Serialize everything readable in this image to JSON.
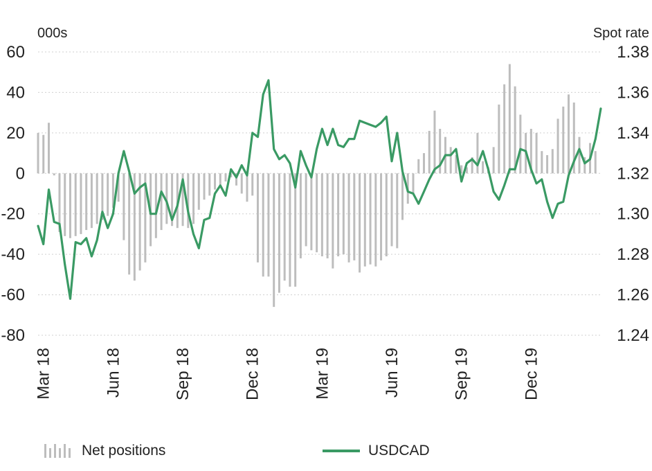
{
  "chart_data": {
    "type": "bar+line",
    "left_axis": {
      "unit_label": "000s",
      "ticks": [
        60,
        40,
        20,
        0,
        -20,
        -40,
        -60,
        -80
      ],
      "ylim": [
        -80,
        60
      ]
    },
    "right_axis": {
      "unit_label": "Spot rate",
      "ticks": [
        "1.38",
        "1.36",
        "1.34",
        "1.32",
        "1.30",
        "1.28",
        "1.26",
        "1.24"
      ],
      "ylim": [
        1.24,
        1.38
      ]
    },
    "x_ticks": [
      {
        "label": "Mar 18",
        "index": 1
      },
      {
        "label": "Jun 18",
        "index": 14
      },
      {
        "label": "Sep 18",
        "index": 27
      },
      {
        "label": "Dec 18",
        "index": 40
      },
      {
        "label": "Mar 19",
        "index": 53
      },
      {
        "label": "Jun 19",
        "index": 66
      },
      {
        "label": "Sep 19",
        "index": 79
      },
      {
        "label": "Dec 19",
        "index": 92
      }
    ],
    "grid": true,
    "legend_placement": "bottom",
    "series": [
      {
        "name": "Net positions",
        "type": "bar",
        "color": "#bdbdbd",
        "values": [
          20,
          19,
          25,
          -1,
          -29,
          -31,
          -32,
          -31,
          -30,
          -28,
          -27,
          -25,
          -23,
          -21,
          -17,
          -14,
          -33,
          -50,
          -53,
          -48,
          -44,
          -36,
          -32,
          -28,
          -25,
          -26,
          -27,
          -26,
          -27,
          -25,
          -18,
          -13,
          -11,
          -8,
          -6,
          -4,
          -2,
          -6,
          -10,
          -14,
          -11,
          -44,
          -51,
          -51,
          -66,
          -59,
          -53,
          -56,
          -56,
          -42,
          -36,
          -38,
          -39,
          -41,
          -42,
          -47,
          -41,
          -40,
          -44,
          -43,
          -49,
          -46,
          -45,
          -46,
          -43,
          -41,
          -36,
          -37,
          -23,
          -15,
          -10,
          7,
          10,
          21,
          31,
          22,
          18,
          13,
          9,
          4,
          3,
          8,
          20,
          6,
          3,
          13,
          34,
          44,
          54,
          43,
          29,
          20,
          22,
          20,
          11,
          9,
          12,
          27,
          33,
          39,
          35,
          18,
          8,
          15,
          11
        ]
      },
      {
        "name": "USDCAD",
        "type": "line",
        "color": "#3a9a64",
        "values": [
          1.294,
          1.285,
          1.312,
          1.296,
          1.295,
          1.275,
          1.258,
          1.286,
          1.285,
          1.288,
          1.279,
          1.287,
          1.301,
          1.293,
          1.3,
          1.32,
          1.331,
          1.321,
          1.31,
          1.313,
          1.315,
          1.3,
          1.3,
          1.311,
          1.306,
          1.297,
          1.304,
          1.317,
          1.301,
          1.29,
          1.283,
          1.297,
          1.298,
          1.31,
          1.314,
          1.309,
          1.322,
          1.318,
          1.324,
          1.319,
          1.34,
          1.338,
          1.359,
          1.366,
          1.332,
          1.327,
          1.329,
          1.325,
          1.313,
          1.331,
          1.324,
          1.318,
          1.332,
          1.342,
          1.334,
          1.342,
          1.334,
          1.333,
          1.337,
          1.337,
          1.346,
          1.345,
          1.344,
          1.343,
          1.345,
          1.348,
          1.326,
          1.34,
          1.321,
          1.311,
          1.31,
          1.305,
          1.311,
          1.317,
          1.322,
          1.324,
          1.329,
          1.329,
          1.332,
          1.316,
          1.325,
          1.327,
          1.324,
          1.331,
          1.322,
          1.311,
          1.307,
          1.314,
          1.322,
          1.322,
          1.332,
          1.331,
          1.322,
          1.315,
          1.317,
          1.306,
          1.298,
          1.305,
          1.306,
          1.319,
          1.326,
          1.332,
          1.325,
          1.327,
          1.337,
          1.352
        ]
      }
    ]
  },
  "legend": {
    "net_positions_label": "Net positions",
    "usdcad_label": "USDCAD"
  }
}
